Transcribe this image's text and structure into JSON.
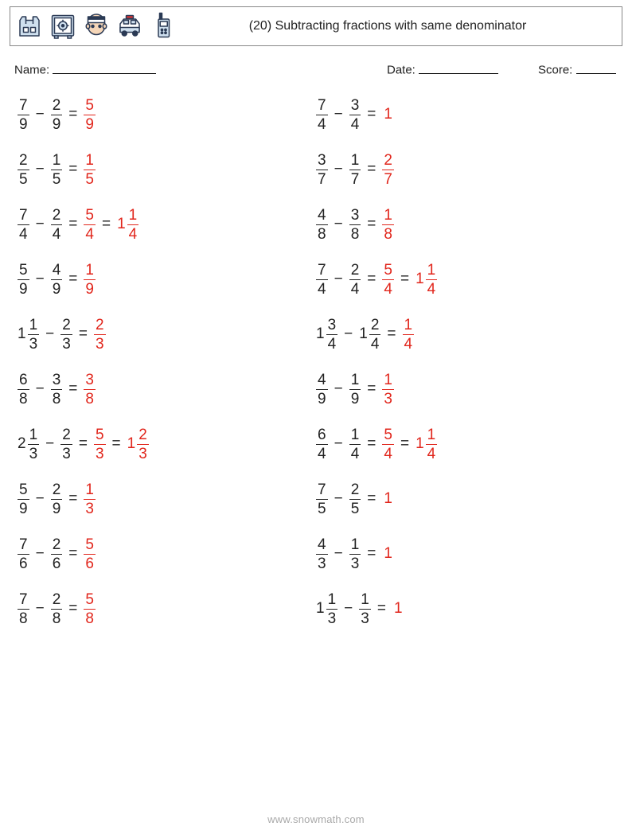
{
  "header": {
    "title": "(20) Subtracting fractions with same denominator",
    "icons": [
      "vest-icon",
      "safe-icon",
      "prisoner-icon",
      "police-car-icon",
      "walkie-talkie-icon"
    ]
  },
  "fields": {
    "name_label": "Name:",
    "date_label": "Date:",
    "score_label": "Score:"
  },
  "footer": "www.snowmath.com",
  "colors": {
    "answer": "#e1261c",
    "text": "#222222",
    "icon_stroke": "#2b3a55",
    "icon_fill": "#cfe0ef"
  },
  "problems": {
    "left": [
      {
        "a": {
          "n": "7",
          "d": "9"
        },
        "b": {
          "n": "2",
          "d": "9"
        },
        "ans": [
          {
            "type": "frac",
            "n": "5",
            "d": "9"
          }
        ]
      },
      {
        "a": {
          "n": "2",
          "d": "5"
        },
        "b": {
          "n": "1",
          "d": "5"
        },
        "ans": [
          {
            "type": "frac",
            "n": "1",
            "d": "5"
          }
        ]
      },
      {
        "a": {
          "n": "7",
          "d": "4"
        },
        "b": {
          "n": "2",
          "d": "4"
        },
        "ans": [
          {
            "type": "frac",
            "n": "5",
            "d": "4"
          },
          {
            "type": "mixed",
            "w": "1",
            "n": "1",
            "d": "4"
          }
        ]
      },
      {
        "a": {
          "n": "5",
          "d": "9"
        },
        "b": {
          "n": "4",
          "d": "9"
        },
        "ans": [
          {
            "type": "frac",
            "n": "1",
            "d": "9"
          }
        ]
      },
      {
        "a": {
          "w": "1",
          "n": "1",
          "d": "3"
        },
        "b": {
          "n": "2",
          "d": "3"
        },
        "ans": [
          {
            "type": "frac",
            "n": "2",
            "d": "3"
          }
        ]
      },
      {
        "a": {
          "n": "6",
          "d": "8"
        },
        "b": {
          "n": "3",
          "d": "8"
        },
        "ans": [
          {
            "type": "frac",
            "n": "3",
            "d": "8"
          }
        ]
      },
      {
        "a": {
          "w": "2",
          "n": "1",
          "d": "3"
        },
        "b": {
          "n": "2",
          "d": "3"
        },
        "ans": [
          {
            "type": "frac",
            "n": "5",
            "d": "3"
          },
          {
            "type": "mixed",
            "w": "1",
            "n": "2",
            "d": "3"
          }
        ]
      },
      {
        "a": {
          "n": "5",
          "d": "9"
        },
        "b": {
          "n": "2",
          "d": "9"
        },
        "ans": [
          {
            "type": "frac",
            "n": "1",
            "d": "3"
          }
        ]
      },
      {
        "a": {
          "n": "7",
          "d": "6"
        },
        "b": {
          "n": "2",
          "d": "6"
        },
        "ans": [
          {
            "type": "frac",
            "n": "5",
            "d": "6"
          }
        ]
      },
      {
        "a": {
          "n": "7",
          "d": "8"
        },
        "b": {
          "n": "2",
          "d": "8"
        },
        "ans": [
          {
            "type": "frac",
            "n": "5",
            "d": "8"
          }
        ]
      }
    ],
    "right": [
      {
        "a": {
          "n": "7",
          "d": "4"
        },
        "b": {
          "n": "3",
          "d": "4"
        },
        "ans": [
          {
            "type": "whole",
            "v": "1"
          }
        ]
      },
      {
        "a": {
          "n": "3",
          "d": "7"
        },
        "b": {
          "n": "1",
          "d": "7"
        },
        "ans": [
          {
            "type": "frac",
            "n": "2",
            "d": "7"
          }
        ]
      },
      {
        "a": {
          "n": "4",
          "d": "8"
        },
        "b": {
          "n": "3",
          "d": "8"
        },
        "ans": [
          {
            "type": "frac",
            "n": "1",
            "d": "8"
          }
        ]
      },
      {
        "a": {
          "n": "7",
          "d": "4"
        },
        "b": {
          "n": "2",
          "d": "4"
        },
        "ans": [
          {
            "type": "frac",
            "n": "5",
            "d": "4"
          },
          {
            "type": "mixed",
            "w": "1",
            "n": "1",
            "d": "4"
          }
        ]
      },
      {
        "a": {
          "w": "1",
          "n": "3",
          "d": "4"
        },
        "b": {
          "w": "1",
          "n": "2",
          "d": "4"
        },
        "ans": [
          {
            "type": "frac",
            "n": "1",
            "d": "4"
          }
        ]
      },
      {
        "a": {
          "n": "4",
          "d": "9"
        },
        "b": {
          "n": "1",
          "d": "9"
        },
        "ans": [
          {
            "type": "frac",
            "n": "1",
            "d": "3"
          }
        ]
      },
      {
        "a": {
          "n": "6",
          "d": "4"
        },
        "b": {
          "n": "1",
          "d": "4"
        },
        "ans": [
          {
            "type": "frac",
            "n": "5",
            "d": "4"
          },
          {
            "type": "mixed",
            "w": "1",
            "n": "1",
            "d": "4"
          }
        ]
      },
      {
        "a": {
          "n": "7",
          "d": "5"
        },
        "b": {
          "n": "2",
          "d": "5"
        },
        "ans": [
          {
            "type": "whole",
            "v": "1"
          }
        ]
      },
      {
        "a": {
          "n": "4",
          "d": "3"
        },
        "b": {
          "n": "1",
          "d": "3"
        },
        "ans": [
          {
            "type": "whole",
            "v": "1"
          }
        ]
      },
      {
        "a": {
          "w": "1",
          "n": "1",
          "d": "3"
        },
        "b": {
          "n": "1",
          "d": "3"
        },
        "ans": [
          {
            "type": "whole",
            "v": "1"
          }
        ]
      }
    ]
  }
}
